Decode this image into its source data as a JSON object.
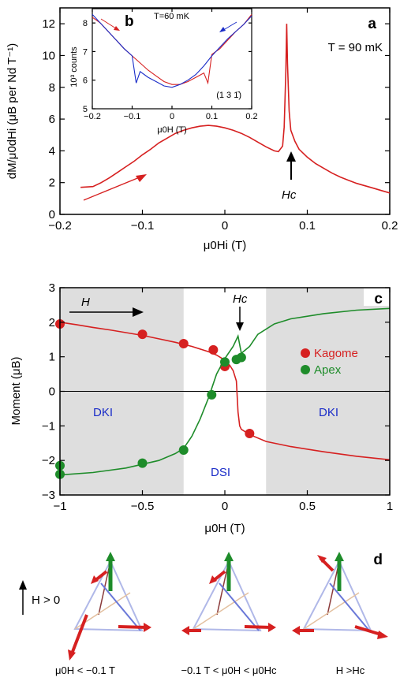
{
  "chart_data": [
    {
      "panel": "a",
      "type": "line",
      "panel_label": "a",
      "annotation": "T = 90 mK",
      "marker_label": "Hc",
      "xlabel": "μ0Hi (T)",
      "ylabel": "dM/μ0dHi (μB per Nd T⁻¹)",
      "xlim": [
        -0.2,
        0.2
      ],
      "ylim": [
        0,
        13
      ],
      "xticks": [
        "-0.2",
        "-0.1",
        "0",
        "0.1",
        "0.2"
      ],
      "yticks": [
        "0",
        "2",
        "4",
        "6",
        "8",
        "10",
        "12"
      ],
      "color": "#d62020",
      "series": [
        {
          "x": [
            -0.175,
            -0.16,
            -0.15,
            -0.14,
            -0.13,
            -0.12,
            -0.11,
            -0.1,
            -0.09,
            -0.08,
            -0.07,
            -0.06,
            -0.05,
            -0.04,
            -0.03,
            -0.02,
            -0.01,
            0.0,
            0.01,
            0.02,
            0.03,
            0.04,
            0.05,
            0.06,
            0.065,
            0.07,
            0.072,
            0.074,
            0.075,
            0.076,
            0.078,
            0.08,
            0.085,
            0.09,
            0.1,
            0.11,
            0.12,
            0.13,
            0.14,
            0.15,
            0.16,
            0.17,
            0.18,
            0.19,
            0.2
          ],
          "y": [
            1.7,
            1.75,
            2.0,
            2.3,
            2.65,
            3.0,
            3.35,
            3.75,
            4.1,
            4.5,
            4.8,
            5.1,
            5.3,
            5.45,
            5.55,
            5.6,
            5.55,
            5.45,
            5.3,
            5.1,
            4.85,
            4.55,
            4.25,
            4.0,
            3.95,
            4.3,
            5.5,
            9.0,
            12.0,
            9.5,
            6.5,
            5.3,
            4.6,
            4.1,
            3.6,
            3.2,
            2.9,
            2.6,
            2.35,
            2.15,
            1.95,
            1.8,
            1.65,
            1.5,
            1.35
          ]
        }
      ]
    },
    {
      "panel": "b",
      "type": "line",
      "panel_label": "b",
      "annotation": "T=60 mK",
      "hkl": "(1 3 1̄)",
      "xlabel": "μ0H (T)",
      "ylabel": "10³ counts",
      "xlim": [
        -0.2,
        0.2
      ],
      "ylim": [
        5,
        8.5
      ],
      "xticks": [
        "-0.2",
        "-0.1",
        "0",
        "0.1",
        "0.2"
      ],
      "yticks": [
        "5",
        "6",
        "7",
        "8"
      ],
      "series": [
        {
          "color": "#d62020",
          "x": [
            -0.2,
            -0.18,
            -0.16,
            -0.14,
            -0.12,
            -0.1,
            -0.08,
            -0.06,
            -0.04,
            -0.02,
            0.0,
            0.02,
            0.04,
            0.06,
            0.08,
            0.09,
            0.1,
            0.12,
            0.14,
            0.16,
            0.18,
            0.2
          ],
          "y": [
            8.2,
            8.0,
            7.7,
            7.4,
            7.1,
            6.85,
            6.6,
            6.35,
            6.15,
            5.95,
            5.85,
            5.85,
            5.95,
            6.1,
            6.25,
            5.9,
            6.9,
            7.1,
            7.4,
            7.7,
            7.95,
            8.3
          ]
        },
        {
          "color": "#1a2cc8",
          "x": [
            -0.2,
            -0.18,
            -0.16,
            -0.14,
            -0.12,
            -0.1,
            -0.09,
            -0.08,
            -0.06,
            -0.04,
            -0.02,
            0.0,
            0.02,
            0.04,
            0.06,
            0.08,
            0.1,
            0.12,
            0.14,
            0.16,
            0.18,
            0.2
          ],
          "y": [
            8.3,
            8.0,
            7.7,
            7.4,
            7.1,
            6.85,
            5.9,
            6.3,
            6.1,
            5.95,
            5.8,
            5.75,
            5.85,
            6.0,
            6.2,
            6.5,
            6.85,
            7.15,
            7.45,
            7.7,
            7.95,
            8.25
          ]
        }
      ]
    },
    {
      "panel": "c",
      "type": "line",
      "panel_label": "c",
      "field_label": "H",
      "marker_label": "Hc",
      "region_labels": [
        "DKI",
        "DSI",
        "DKI"
      ],
      "xlabel": "μ0H (T)",
      "ylabel": "Moment (μB)",
      "xlim": [
        -1,
        1
      ],
      "ylim": [
        -3,
        3
      ],
      "xticks": [
        "-1",
        "-0.5",
        "0",
        "0.5",
        "1"
      ],
      "yticks": [
        "-3",
        "-2",
        "-1",
        "0",
        "1",
        "2",
        "3"
      ],
      "legend": [
        "Kagome",
        "Apex"
      ],
      "legend_position": "right",
      "shaded_regions": [
        [
          -1,
          -0.25
        ],
        [
          0.25,
          1
        ]
      ],
      "series": [
        {
          "name": "Kagome",
          "color": "#d62020",
          "line_x": [
            -1,
            -0.9,
            -0.8,
            -0.7,
            -0.6,
            -0.5,
            -0.4,
            -0.3,
            -0.2,
            -0.1,
            -0.05,
            0,
            0.03,
            0.05,
            0.07,
            0.08,
            0.09,
            0.1,
            0.15,
            0.25,
            0.4,
            0.6,
            0.8,
            1
          ],
          "line_y": [
            2.0,
            1.93,
            1.85,
            1.78,
            1.7,
            1.62,
            1.52,
            1.42,
            1.3,
            1.15,
            1.05,
            0.9,
            0.75,
            0.6,
            0.3,
            -0.6,
            -1.0,
            -1.1,
            -1.25,
            -1.45,
            -1.6,
            -1.75,
            -1.88,
            -1.98
          ],
          "points_x": [
            -1,
            -0.5,
            -0.25,
            -0.07,
            0,
            0.15
          ],
          "points_y": [
            1.95,
            1.65,
            1.38,
            1.2,
            0.72,
            -1.22
          ]
        },
        {
          "name": "Apex",
          "color": "#1e8c2a",
          "line_x": [
            -1,
            -0.8,
            -0.6,
            -0.4,
            -0.3,
            -0.25,
            -0.2,
            -0.15,
            -0.1,
            -0.05,
            0,
            0.05,
            0.08,
            0.1,
            0.15,
            0.2,
            0.3,
            0.4,
            0.6,
            0.8,
            1
          ],
          "line_y": [
            -2.42,
            -2.35,
            -2.22,
            -2.0,
            -1.8,
            -1.65,
            -1.3,
            -0.8,
            -0.2,
            0.5,
            0.95,
            1.3,
            1.6,
            1.1,
            1.3,
            1.65,
            1.95,
            2.1,
            2.25,
            2.35,
            2.4
          ],
          "points_x": [
            -1,
            -1,
            -0.5,
            -0.25,
            -0.08,
            0,
            0.07,
            0.1
          ],
          "points_y": [
            -2.15,
            -2.4,
            -2.08,
            -1.7,
            -0.1,
            0.85,
            0.92,
            0.98
          ]
        }
      ]
    }
  ],
  "panel_d": {
    "label": "d",
    "field_label": "H > 0",
    "captions": [
      "μ0H < −0.1 T",
      "−0.1 T < μ0H < μ0Hc",
      "H >Hc"
    ]
  }
}
